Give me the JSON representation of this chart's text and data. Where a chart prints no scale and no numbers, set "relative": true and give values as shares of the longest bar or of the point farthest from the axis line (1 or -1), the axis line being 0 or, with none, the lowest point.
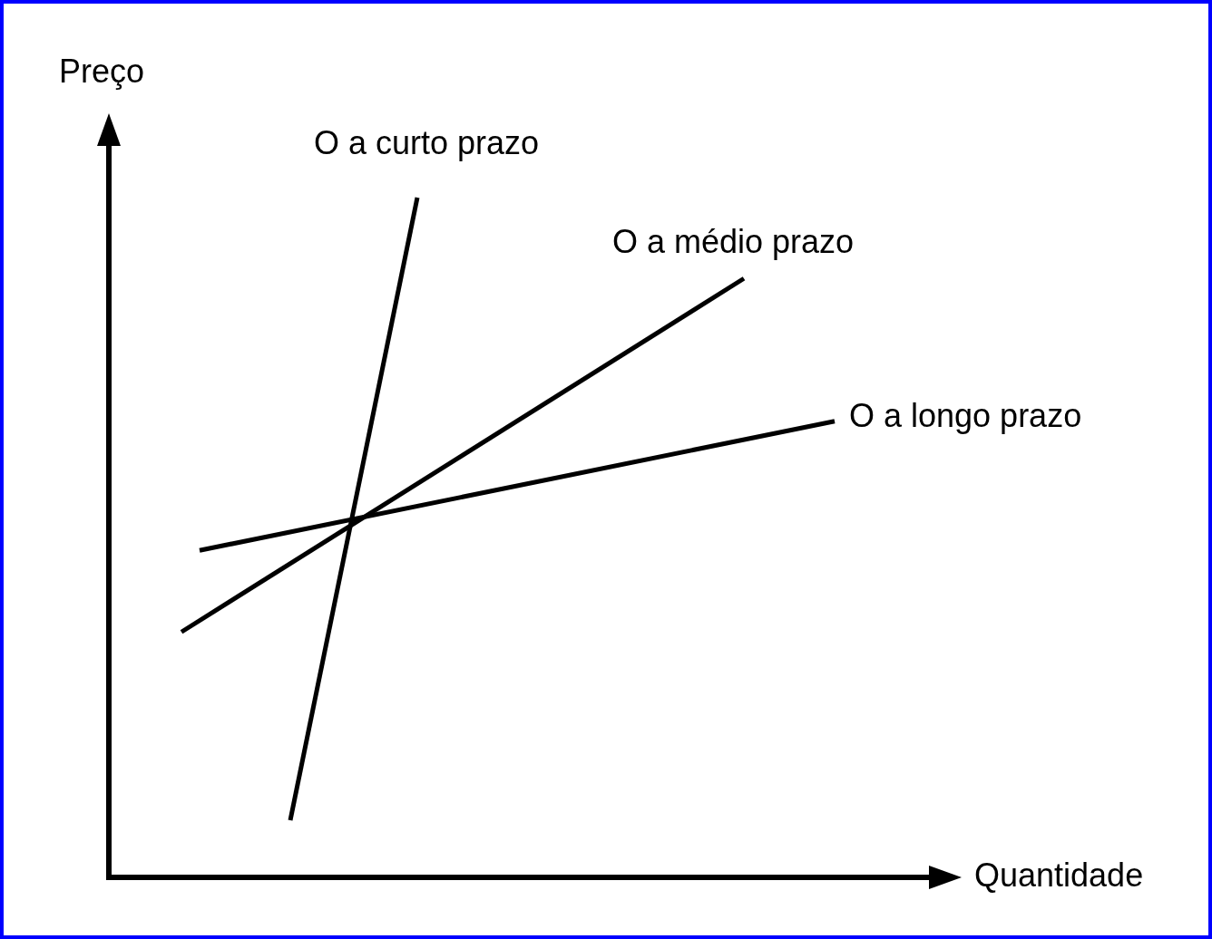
{
  "chart_data": {
    "type": "line",
    "relative": true,
    "xlabel": "Quantidade",
    "ylabel": "Preço",
    "legend": false,
    "grid": false,
    "marker": "none",
    "line_style": "solid",
    "categories": [
      null,
      null,
      null,
      null,
      null,
      null,
      null,
      null,
      null,
      null,
      null,
      null,
      null,
      null,
      null,
      null,
      null,
      null,
      null,
      null,
      null,
      null,
      null,
      null,
      null,
      null,
      null,
      null,
      null,
      null,
      null,
      null,
      null,
      null,
      null,
      null,
      null,
      null,
      null,
      null,
      null,
      null,
      null,
      null,
      null,
      null,
      null,
      null
    ],
    "series": [
      {
        "name": "O a curto prazo",
        "color": "#000000",
        "values": [
          null,
          null,
          null,
          null,
          null,
          null,
          null,
          null,
          null,
          null,
          0.084,
          null,
          null,
          null,
          null,
          null,
          null,
          1,
          null,
          null,
          null,
          null,
          null,
          null,
          null,
          null,
          null,
          null,
          null,
          null,
          null,
          null,
          null,
          null,
          null,
          null,
          null,
          null,
          null,
          null,
          null,
          null,
          null,
          null,
          null,
          null,
          null,
          null
        ]
      },
      {
        "name": "O a médio prazo",
        "color": "#000000",
        "values": [
          null,
          null,
          null,
          null,
          0.361,
          null,
          null,
          null,
          null,
          null,
          null,
          null,
          null,
          null,
          null,
          null,
          null,
          null,
          null,
          null,
          null,
          null,
          null,
          null,
          null,
          null,
          null,
          null,
          null,
          null,
          null,
          null,
          null,
          null,
          null,
          0.881,
          null,
          null,
          null,
          null,
          null,
          null,
          null,
          null,
          null,
          null,
          null,
          null
        ]
      },
      {
        "name": "O a longo prazo",
        "color": "#000000",
        "values": [
          null,
          null,
          null,
          null,
          null,
          0.481,
          null,
          null,
          null,
          null,
          null,
          null,
          null,
          null,
          null,
          null,
          null,
          null,
          null,
          null,
          null,
          null,
          null,
          null,
          null,
          null,
          null,
          null,
          null,
          null,
          null,
          null,
          null,
          null,
          null,
          null,
          null,
          null,
          null,
          null,
          0.671,
          null,
          null,
          null,
          null,
          null,
          null,
          null
        ]
      }
    ]
  }
}
